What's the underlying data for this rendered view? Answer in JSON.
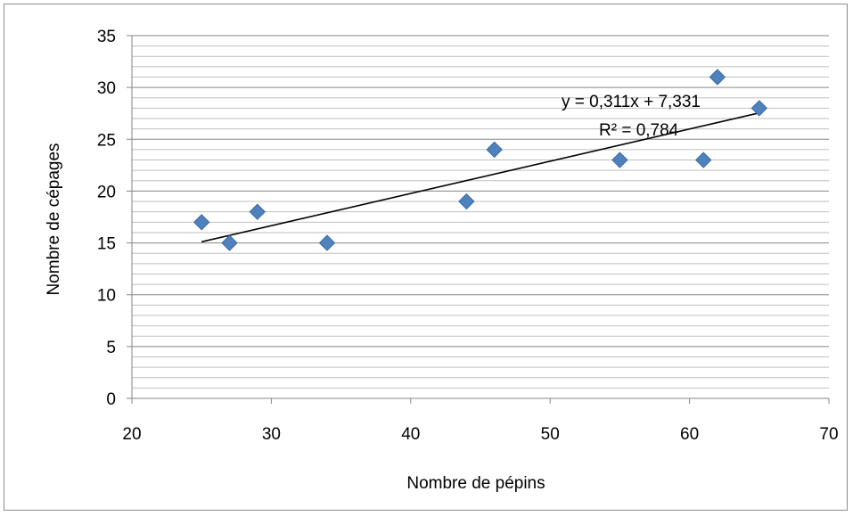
{
  "chart_data": {
    "type": "scatter",
    "title": "",
    "xlabel": "Nombre de pépins",
    "ylabel": "Nombre de cépages",
    "xlim": [
      20,
      70
    ],
    "ylim": [
      0,
      35
    ],
    "xticks": [
      20,
      30,
      40,
      50,
      60,
      70
    ],
    "yticks": [
      0,
      5,
      10,
      15,
      20,
      25,
      30,
      35
    ],
    "xtick_labels": [
      "20",
      "30",
      "40",
      "50",
      "60",
      "70"
    ],
    "ytick_labels": [
      "0",
      "5",
      "10",
      "15",
      "20",
      "25",
      "30",
      "35"
    ],
    "grid": "horizontal major and minor",
    "minor_y_step": 1,
    "legend": "none",
    "marker_color": "#4f81bd",
    "marker_edge_color": "#3a6aa5",
    "series": [
      {
        "x": [
          25,
          27,
          29,
          34,
          44,
          46,
          55,
          61,
          62,
          65
        ],
        "y": [
          17,
          15,
          18,
          15,
          19,
          24,
          23,
          23,
          31,
          28
        ]
      }
    ],
    "trendline": {
      "type": "linear",
      "slope": 0.311,
      "intercept": 7.331,
      "x_range": [
        25,
        65
      ],
      "color": "#000000"
    },
    "annotations": [
      {
        "id": "equation",
        "text": "y = 0,311x + 7,331"
      },
      {
        "id": "r2",
        "text": "R² = 0,784"
      }
    ]
  }
}
